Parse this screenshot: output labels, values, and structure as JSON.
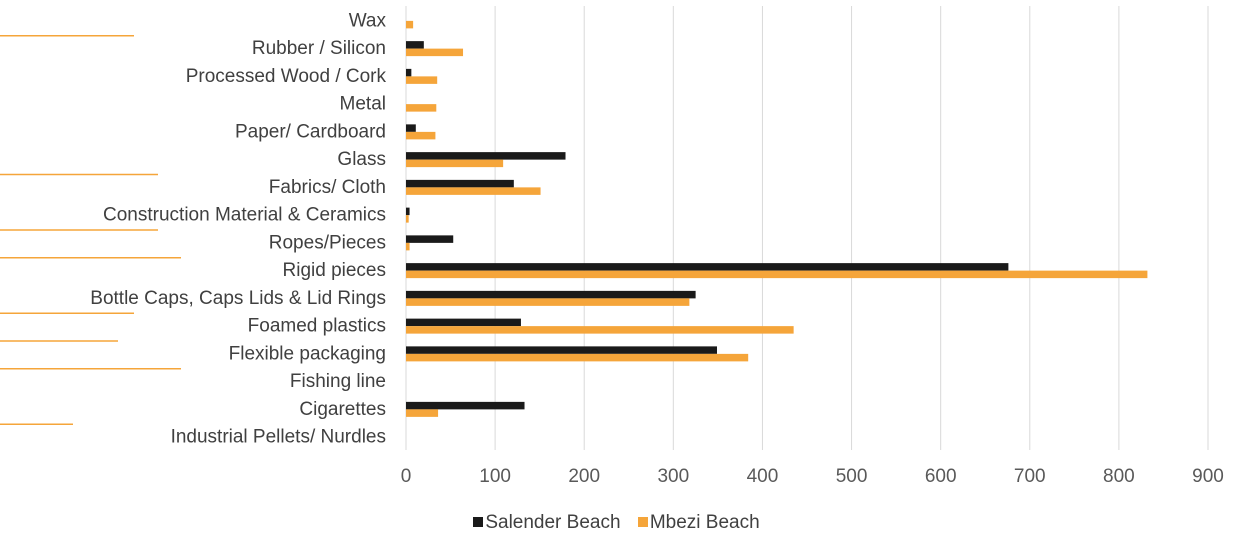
{
  "chart_data": {
    "type": "bar",
    "orientation": "horizontal",
    "categories": [
      "Wax",
      "Rubber / Silicon",
      "Processed Wood / Cork",
      "Metal",
      "Paper/ Cardboard",
      "Glass",
      "Fabrics/ Cloth",
      "Construction Material & Ceramics",
      "Ropes/Pieces",
      "Rigid pieces",
      "Bottle Caps, Caps Lids & Lid Rings",
      "Foamed plastics",
      "Flexible packaging",
      "Fishing line",
      "Cigarettes",
      "Industrial Pellets/ Nurdles"
    ],
    "series": [
      {
        "name": "Salender Beach",
        "color": "#1a1a1a",
        "values": [
          0,
          20,
          6,
          0,
          11,
          179,
          121,
          4,
          53,
          676,
          325,
          129,
          349,
          0,
          133,
          0
        ]
      },
      {
        "name": "Mbezi Beach",
        "color": "#f5a53a",
        "values": [
          8,
          64,
          35,
          34,
          33,
          109,
          151,
          3,
          4,
          832,
          318,
          435,
          384,
          0,
          36,
          0
        ]
      }
    ],
    "xlim": [
      0,
      900
    ],
    "xticks": [
      "0",
      "100",
      "200",
      "300",
      "400",
      "500",
      "600",
      "700",
      "800",
      "900"
    ],
    "grid": true,
    "legend_position": "bottom",
    "title": "",
    "xlabel": "",
    "ylabel": ""
  }
}
